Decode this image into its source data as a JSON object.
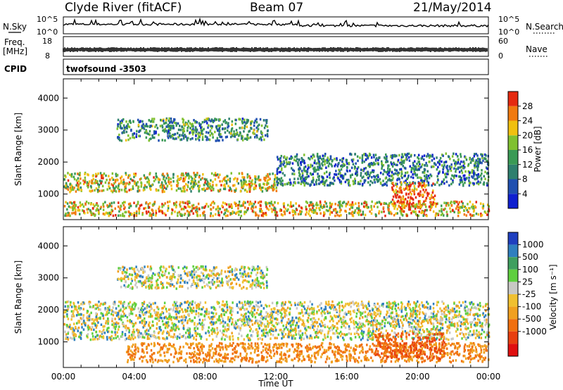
{
  "header": {
    "station": "Clyde River (fitACF)",
    "beam": "Beam 07",
    "date": "21/May/2014"
  },
  "nsky_panel": {
    "left_label": "N.Sky",
    "left_ticks": [
      "10^5",
      "10^0"
    ],
    "right_label": "N.Search",
    "right_ticks": [
      "10^5",
      "10^0"
    ]
  },
  "freq_panel": {
    "left_label_top": "Freq.",
    "left_label_unit": "[MHz]",
    "left_ticks": [
      "18",
      "8"
    ],
    "right_label": "Nave",
    "right_ticks": [
      "60",
      "0"
    ]
  },
  "cpid_panel": {
    "label": "CPID",
    "program": "twofsound -3503"
  },
  "chart_data": [
    {
      "type": "heatmap",
      "quantity": "Power",
      "ylabel": "Slant Range [km]",
      "ylim": [
        200,
        4600
      ],
      "yticks": [
        1000,
        2000,
        3000,
        4000
      ],
      "xlim_hours": [
        0,
        24
      ],
      "colorbar_label": "Power [dB]",
      "colorbar_range": [
        0,
        32
      ],
      "colorbar_ticks": [
        "28",
        "24",
        "20",
        "16",
        "12",
        "8",
        "4"
      ],
      "colorbar_colors": [
        "#1020d0",
        "#2050b0",
        "#2e7f6e",
        "#3a9a55",
        "#80c030",
        "#f0c010",
        "#f07a10",
        "#e52a10"
      ],
      "scatter_bands": [
        {
          "start_h": 0.0,
          "end_h": 24.0,
          "range_km": [
            350,
            800
          ],
          "value_db": 22
        },
        {
          "start_h": 0.0,
          "end_h": 12.0,
          "range_km": [
            1100,
            1700
          ],
          "value_db": 20
        },
        {
          "start_h": 3.0,
          "end_h": 11.5,
          "range_km": [
            2700,
            3400
          ],
          "value_db": 12
        },
        {
          "start_h": 12.0,
          "end_h": 24.0,
          "range_km": [
            1300,
            2300
          ],
          "value_db": 10
        },
        {
          "start_h": 18.5,
          "end_h": 21.0,
          "range_km": [
            600,
            1400
          ],
          "value_db": 28
        }
      ]
    },
    {
      "type": "heatmap",
      "quantity": "Velocity",
      "ylabel": "Slant Range [km]",
      "ylim": [
        200,
        4600
      ],
      "yticks": [
        1000,
        2000,
        3000,
        4000
      ],
      "xlabel": "Time UT",
      "xticks": [
        "00:00",
        "04:00",
        "08:00",
        "12:00",
        "16:00",
        "20:00",
        "00:00"
      ],
      "xlim_hours": [
        0,
        24
      ],
      "colorbar_label": "Velocity [m s⁻¹]",
      "colorbar_ticks": [
        "1000",
        "500",
        "100",
        "25",
        "-25",
        "-100",
        "-500",
        "-1000"
      ],
      "colorbar_colors": [
        "#1f3fbf",
        "#2f7fbf",
        "#3f9f5f",
        "#5fcf3f",
        "#c8c8c4",
        "#f0c030",
        "#f0a020",
        "#f07010",
        "#e84010",
        "#e01010"
      ],
      "scatter_bands": [
        {
          "start_h": 3.5,
          "end_h": 24.0,
          "range_km": [
            400,
            1000
          ],
          "value_ms": -300
        },
        {
          "start_h": 0.0,
          "end_h": 24.0,
          "range_km": [
            1100,
            2300
          ],
          "value_ms": 0
        },
        {
          "start_h": 3.0,
          "end_h": 11.5,
          "range_km": [
            2700,
            3400
          ],
          "value_ms": 0
        },
        {
          "start_h": 17.5,
          "end_h": 21.5,
          "range_km": [
            500,
            1300
          ],
          "value_ms": -500
        }
      ]
    }
  ]
}
